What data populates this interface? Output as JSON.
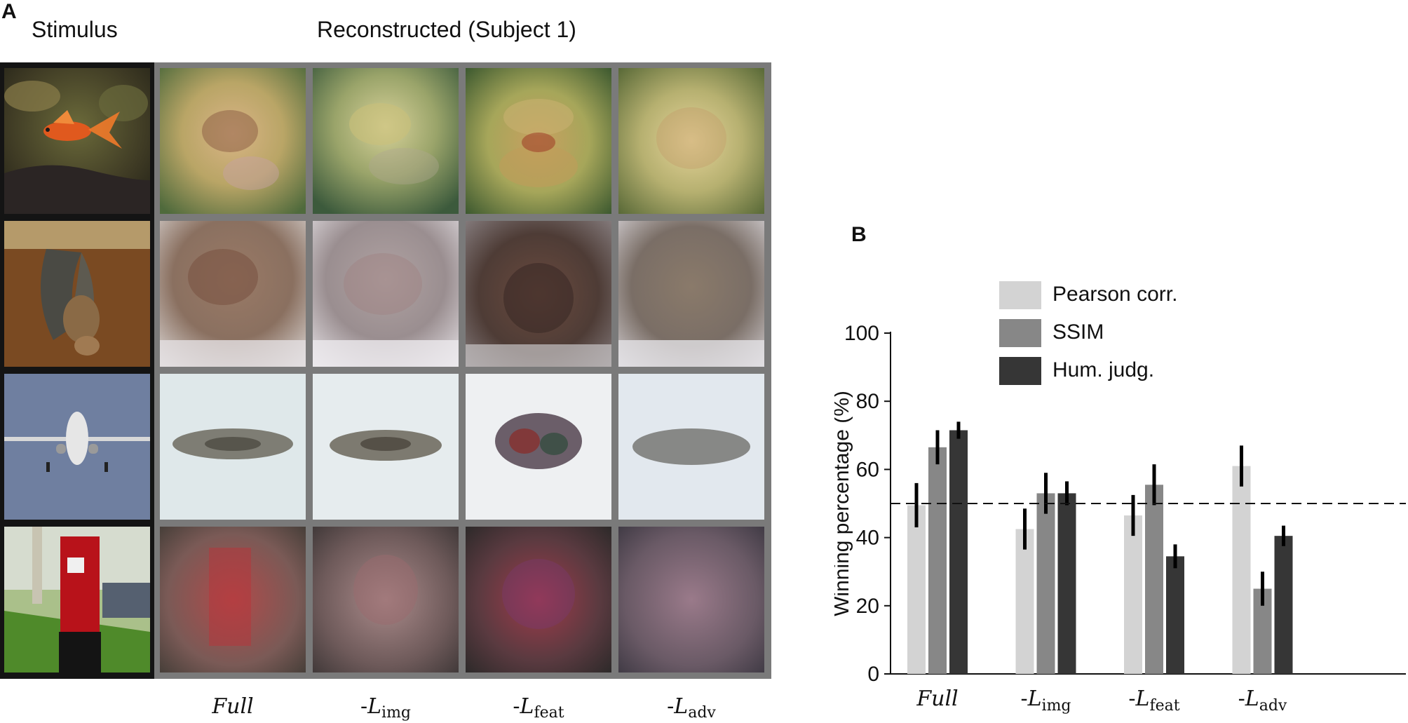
{
  "panel_a": {
    "letter": "A",
    "stimulus_header": "Stimulus",
    "recon_header": "Reconstructed (Subject 1)",
    "rows": [
      {
        "stimulus": "goldfish",
        "stimulus_icon": "goldfish-photo"
      },
      {
        "stimulus": "bat",
        "stimulus_icon": "bat-photo"
      },
      {
        "stimulus": "airplane",
        "stimulus_icon": "airplane-photo"
      },
      {
        "stimulus": "post box",
        "stimulus_icon": "postbox-photo"
      }
    ],
    "column_labels": [
      {
        "prefix": "",
        "main": "Full",
        "sub": ""
      },
      {
        "prefix": "-",
        "main": "L",
        "sub": "img"
      },
      {
        "prefix": "-",
        "main": "L",
        "sub": "feat"
      },
      {
        "prefix": "-",
        "main": "L",
        "sub": "adv"
      }
    ]
  },
  "panel_b": {
    "letter": "B"
  },
  "chart_data": {
    "type": "bar",
    "title": "",
    "xlabel": "",
    "ylabel": "Winning percentage (%)",
    "ylim": [
      0,
      100
    ],
    "yticks": [
      0,
      20,
      40,
      60,
      80,
      100
    ],
    "categories": [
      "Full",
      "-L_img",
      "-L_feat",
      "-L_adv"
    ],
    "category_labels": [
      {
        "prefix": "",
        "main": "Full",
        "sub": ""
      },
      {
        "prefix": "-",
        "main": "L",
        "sub": "img"
      },
      {
        "prefix": "-",
        "main": "L",
        "sub": "feat"
      },
      {
        "prefix": "-",
        "main": "L",
        "sub": "adv"
      }
    ],
    "series": [
      {
        "name": "Pearson corr.",
        "color": "#d3d3d3",
        "values": [
          49.5,
          42.5,
          46.5,
          61
        ],
        "errors": [
          6.5,
          6,
          6,
          6
        ]
      },
      {
        "name": "SSIM",
        "color": "#878787",
        "values": [
          66.5,
          53,
          55.5,
          25
        ],
        "errors": [
          5,
          6,
          6,
          5
        ]
      },
      {
        "name": "Hum. judg.",
        "color": "#363636",
        "values": [
          71.5,
          53,
          34.5,
          40.5
        ],
        "errors": [
          2.5,
          3.5,
          3.5,
          3
        ]
      }
    ],
    "reference_line": 50,
    "legend_position": "top-left"
  }
}
